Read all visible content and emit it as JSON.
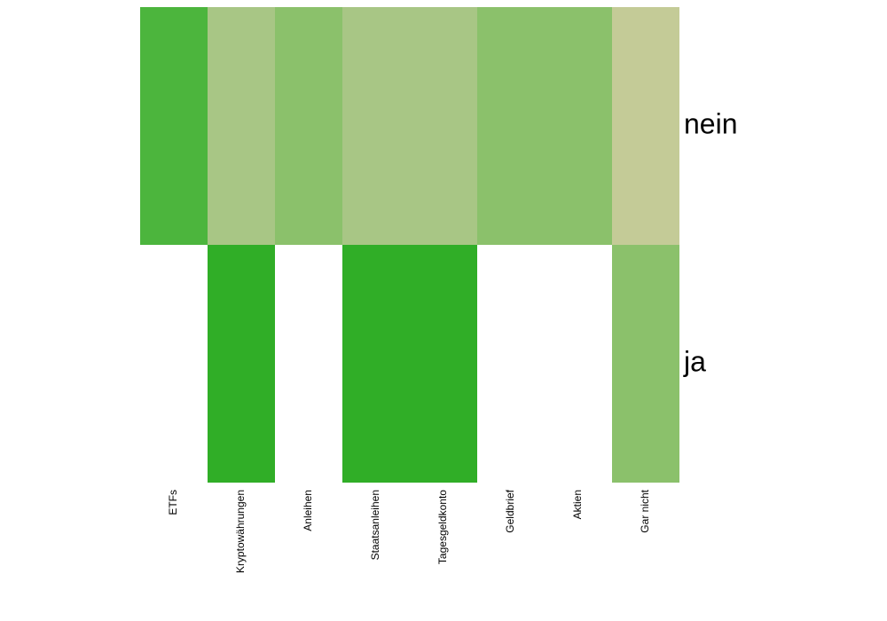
{
  "chart_data": {
    "type": "heatmap",
    "title": "",
    "xlabel": "",
    "ylabel": "",
    "columns": [
      "ETFs",
      "Kryptowährungen",
      "Anleihen",
      "Staatsanleihen",
      "Tagesgeldkonto",
      "Geldbrief",
      "Aktien",
      "Gar nicht"
    ],
    "rows": [
      "nein",
      "ja"
    ],
    "cells": [
      [
        {
          "color": "#4cb53d"
        },
        {
          "color": "#a8c685"
        },
        {
          "color": "#8bc16b"
        },
        {
          "color": "#a8c685"
        },
        {
          "color": "#a8c685"
        },
        {
          "color": "#8bc16b"
        },
        {
          "color": "#8bc16b"
        },
        {
          "color": "#c4cb97"
        }
      ],
      [
        {
          "color": "#ffffff"
        },
        {
          "color": "#30ae27"
        },
        {
          "color": "#ffffff"
        },
        {
          "color": "#30ae27"
        },
        {
          "color": "#30ae27"
        },
        {
          "color": "#ffffff"
        },
        {
          "color": "#ffffff"
        },
        {
          "color": "#8bc16b"
        }
      ]
    ],
    "grid": false,
    "legend": "none"
  }
}
